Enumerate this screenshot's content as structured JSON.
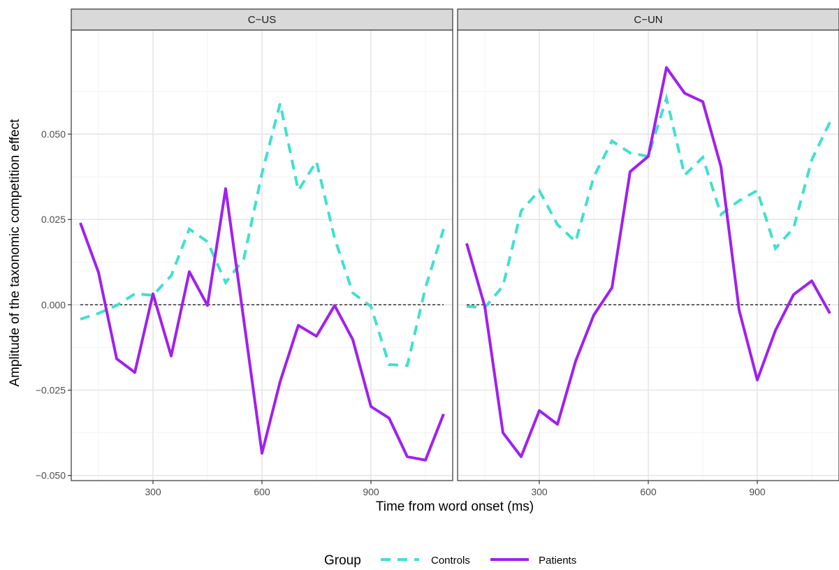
{
  "chart_data": {
    "type": "line",
    "xlabel": "Time from word onset (ms)",
    "ylabel": "Amplitude of the taxonomic competition effect",
    "xlim": [
      75,
      1125
    ],
    "ylim": [
      -0.0515,
      0.0805
    ],
    "x_ticks": [
      300,
      600,
      900
    ],
    "x_tick_labels": [
      "300",
      "600",
      "900"
    ],
    "y_ticks": [
      -0.05,
      -0.025,
      0.0,
      0.025,
      0.05
    ],
    "y_tick_labels": [
      "−0.050",
      "−0.025",
      "0.000",
      "0.025",
      "0.050"
    ],
    "grid": true,
    "reference_line": 0,
    "legend": {
      "title": "Group",
      "position": "bottom",
      "entries": [
        "Controls",
        "Patients"
      ]
    },
    "x": [
      100,
      150,
      200,
      250,
      300,
      350,
      400,
      450,
      500,
      550,
      600,
      650,
      700,
      750,
      800,
      850,
      900,
      950,
      1000,
      1050,
      1100
    ],
    "colors": {
      "Controls": "#40e0d0",
      "Patients": "#a020f0"
    },
    "panels": [
      {
        "title": "C−US",
        "series": [
          {
            "name": "Controls",
            "values": [
              -0.0042,
              -0.0025,
              -0.0002,
              0.0032,
              0.0028,
              0.0085,
              0.0222,
              0.0185,
              0.0065,
              0.0135,
              0.0385,
              0.059,
              0.0335,
              0.042,
              0.0195,
              0.0035,
              -0.0005,
              -0.0175,
              -0.0178,
              0.005,
              0.0222
            ]
          },
          {
            "name": "Patients",
            "values": [
              0.024,
              0.0095,
              -0.0158,
              -0.0198,
              0.0032,
              -0.015,
              0.0097,
              -0.0002,
              0.034,
              -0.0045,
              -0.0435,
              -0.0225,
              -0.006,
              -0.0092,
              -0.0002,
              -0.0102,
              -0.0298,
              -0.0332,
              -0.0445,
              -0.0455,
              -0.032
            ]
          }
        ]
      },
      {
        "title": "C−UN",
        "series": [
          {
            "name": "Controls",
            "values": [
              -0.0005,
              -0.0008,
              0.0055,
              0.0275,
              0.0335,
              0.0235,
              0.0185,
              0.0375,
              0.048,
              0.0445,
              0.0435,
              0.0605,
              0.038,
              0.0432,
              0.0265,
              0.0305,
              0.0335,
              0.0165,
              0.0225,
              0.0425,
              0.0535
            ]
          },
          {
            "name": "Patients",
            "values": [
              0.018,
              -0.0005,
              -0.0375,
              -0.0445,
              -0.031,
              -0.035,
              -0.0165,
              -0.003,
              0.005,
              0.039,
              0.0435,
              0.0695,
              0.062,
              0.0595,
              0.0405,
              -0.0015,
              -0.022,
              -0.0075,
              0.003,
              0.007,
              -0.0025
            ]
          }
        ]
      }
    ]
  }
}
